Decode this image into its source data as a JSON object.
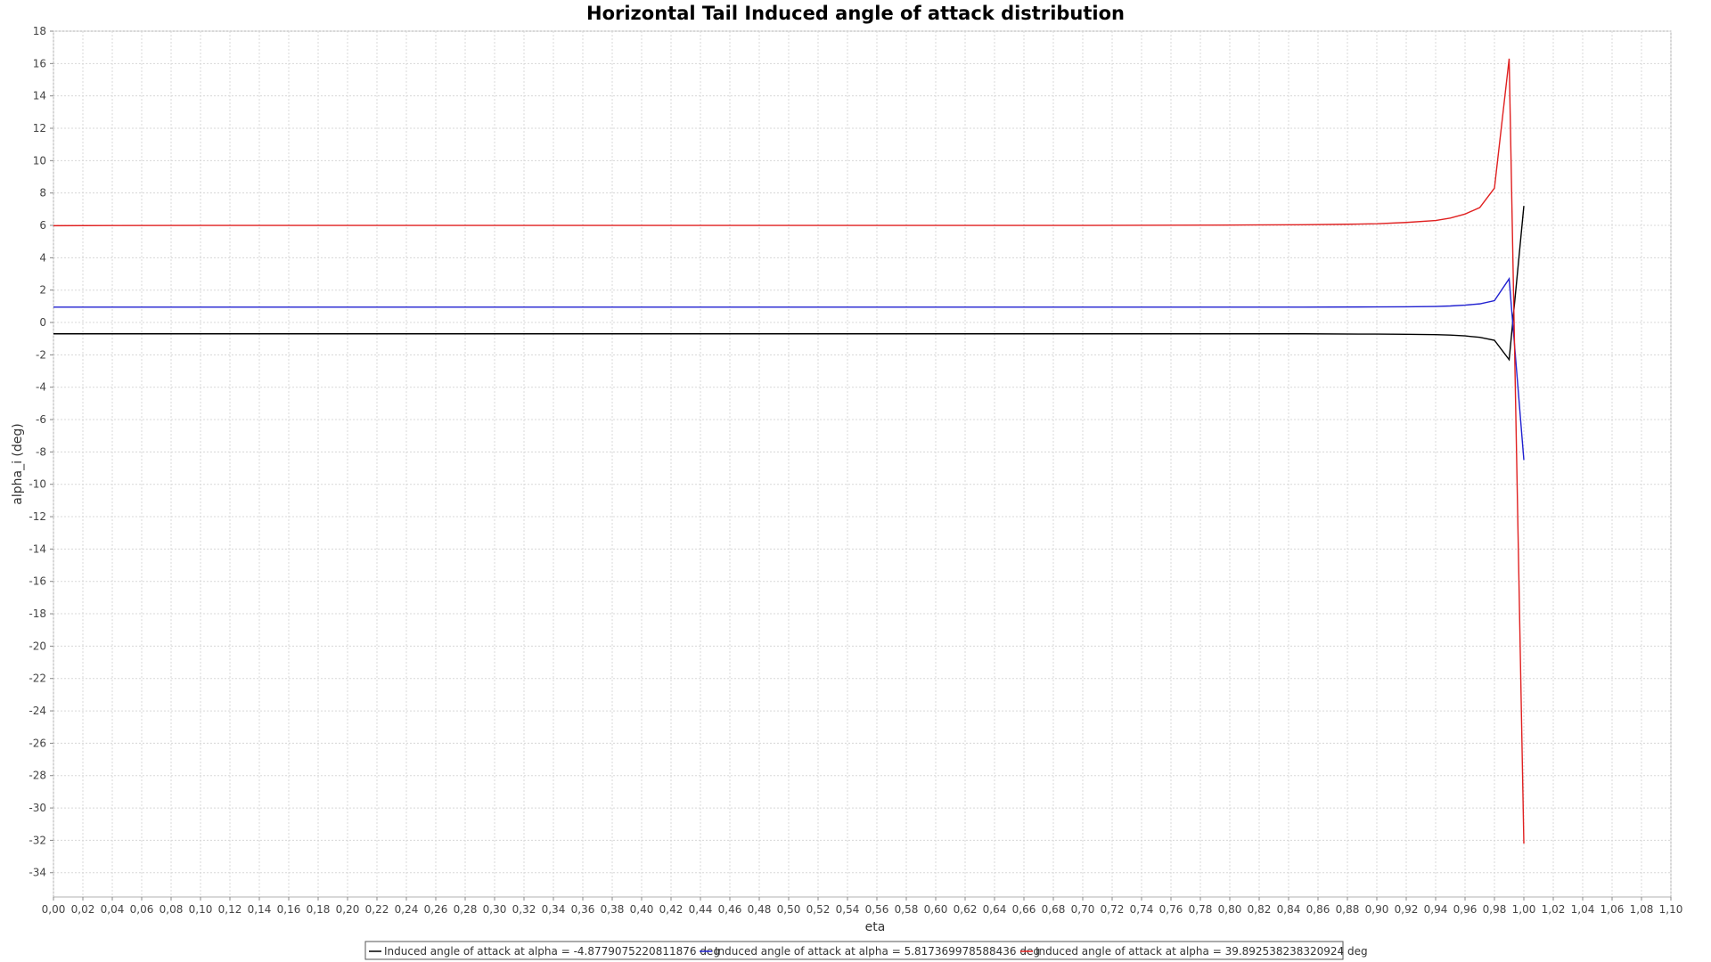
{
  "chart_data": {
    "type": "line",
    "title": "Horizontal Tail Induced angle of attack distribution",
    "xlabel": "eta",
    "ylabel": "alpha_i (deg)",
    "xlim": [
      0.0,
      1.1
    ],
    "ylim": [
      -35.5,
      18.0
    ],
    "x_ticks": [
      "0,00",
      "0,02",
      "0,04",
      "0,06",
      "0,08",
      "0,10",
      "0,12",
      "0,14",
      "0,16",
      "0,18",
      "0,20",
      "0,22",
      "0,24",
      "0,26",
      "0,28",
      "0,30",
      "0,32",
      "0,34",
      "0,36",
      "0,38",
      "0,40",
      "0,42",
      "0,44",
      "0,46",
      "0,48",
      "0,50",
      "0,52",
      "0,54",
      "0,56",
      "0,58",
      "0,60",
      "0,62",
      "0,64",
      "0,66",
      "0,68",
      "0,70",
      "0,72",
      "0,74",
      "0,76",
      "0,78",
      "0,80",
      "0,82",
      "0,84",
      "0,86",
      "0,88",
      "0,90",
      "0,92",
      "0,94",
      "0,96",
      "0,98",
      "1,00",
      "1,02",
      "1,04",
      "1,06",
      "1,08",
      "1,10"
    ],
    "y_ticks": [
      18,
      16,
      14,
      12,
      10,
      8,
      6,
      4,
      2,
      0,
      -2,
      -4,
      -6,
      -8,
      -10,
      -12,
      -14,
      -16,
      -18,
      -20,
      -22,
      -24,
      -26,
      -28,
      -30,
      -32,
      -34
    ],
    "grid": true,
    "legend_position": "bottom",
    "series": [
      {
        "name": "Induced angle of attack at alpha = -4.8779075220811876 deg",
        "color": "#000000",
        "x": [
          0.0,
          0.1,
          0.2,
          0.3,
          0.4,
          0.5,
          0.6,
          0.7,
          0.8,
          0.85,
          0.9,
          0.92,
          0.94,
          0.95,
          0.96,
          0.97,
          0.98,
          0.99,
          1.0
        ],
        "y": [
          -0.7,
          -0.7,
          -0.7,
          -0.7,
          -0.7,
          -0.7,
          -0.7,
          -0.7,
          -0.7,
          -0.7,
          -0.72,
          -0.73,
          -0.75,
          -0.78,
          -0.83,
          -0.92,
          -1.1,
          -2.3,
          7.2
        ]
      },
      {
        "name": "Induced angle of attack at alpha = 5.817369978588436 deg",
        "color": "#2020d0",
        "x": [
          0.0,
          0.1,
          0.2,
          0.3,
          0.4,
          0.5,
          0.6,
          0.7,
          0.8,
          0.85,
          0.9,
          0.92,
          0.94,
          0.95,
          0.96,
          0.97,
          0.98,
          0.99,
          1.0
        ],
        "y": [
          0.95,
          0.95,
          0.95,
          0.95,
          0.95,
          0.95,
          0.95,
          0.95,
          0.95,
          0.95,
          0.96,
          0.97,
          0.99,
          1.02,
          1.07,
          1.15,
          1.35,
          2.7,
          -8.5
        ]
      },
      {
        "name": "Induced angle of attack at alpha = 39.892538238320924 deg",
        "color": "#e02020",
        "x": [
          0.0,
          0.1,
          0.2,
          0.3,
          0.4,
          0.5,
          0.6,
          0.7,
          0.8,
          0.85,
          0.88,
          0.9,
          0.92,
          0.94,
          0.95,
          0.96,
          0.97,
          0.98,
          0.99,
          1.0
        ],
        "y": [
          5.98,
          6.0,
          6.0,
          6.0,
          6.0,
          6.0,
          6.0,
          6.0,
          6.02,
          6.04,
          6.07,
          6.1,
          6.18,
          6.3,
          6.45,
          6.7,
          7.1,
          8.3,
          16.3,
          -32.2
        ]
      }
    ]
  },
  "legend": {
    "items": [
      {
        "label": "Induced angle of attack at alpha = -4.8779075220811876 deg",
        "color": "#000000"
      },
      {
        "label": "Induced angle of attack at alpha = 5.817369978588436 deg",
        "color": "#2020d0"
      },
      {
        "label": "Induced angle of attack at alpha = 39.892538238320924 deg",
        "color": "#e02020"
      }
    ]
  }
}
